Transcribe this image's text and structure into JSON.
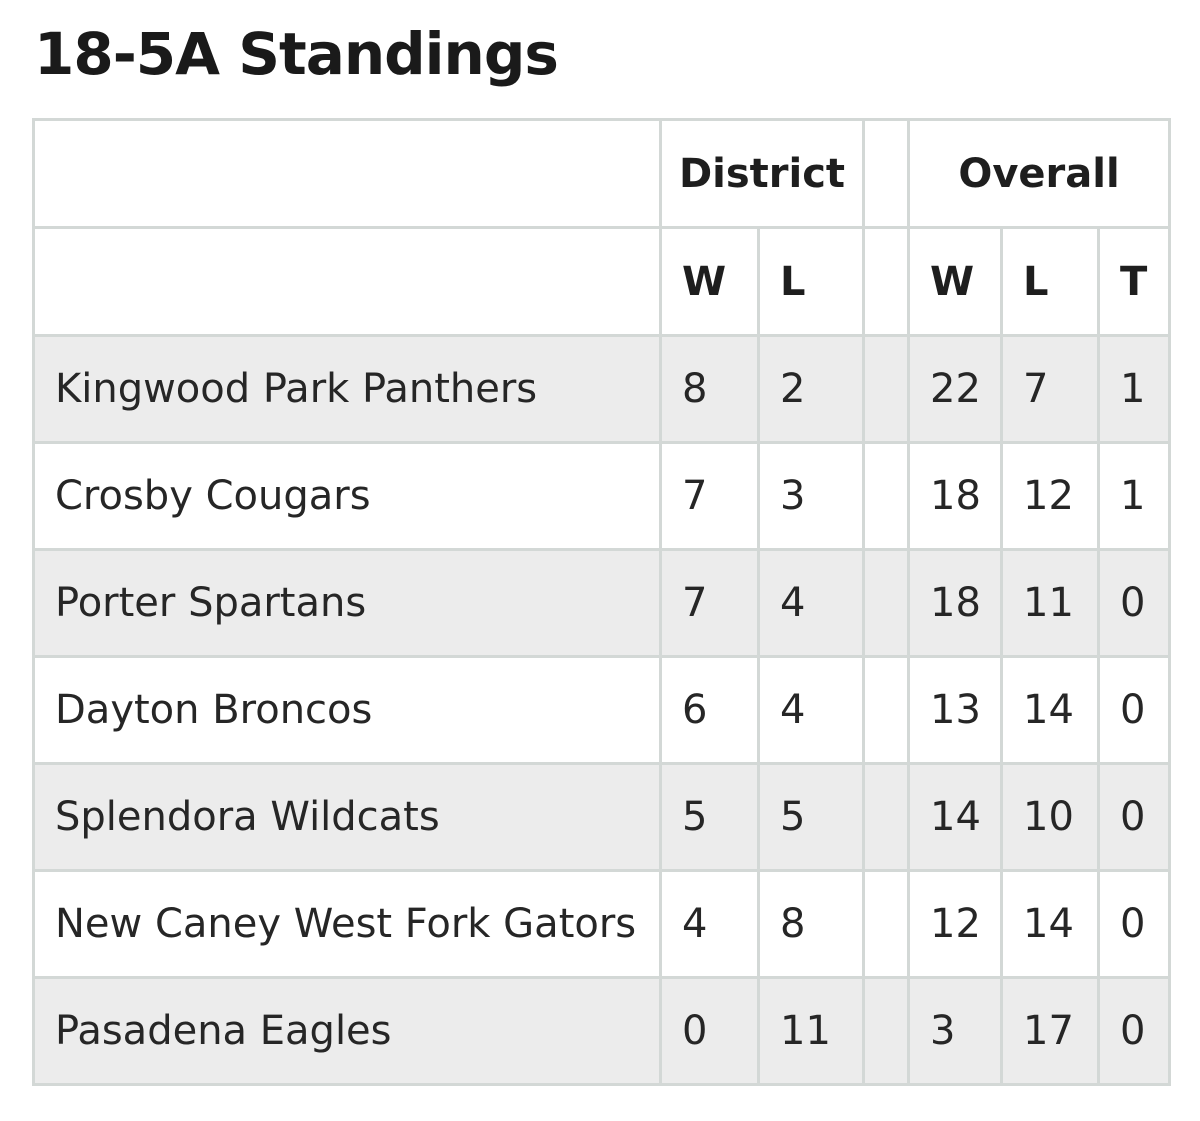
{
  "title": "18-5A Standings",
  "table": {
    "group_headers": {
      "district": "District",
      "overall": "Overall"
    },
    "sub_headers": {
      "district_w": "W",
      "district_l": "L",
      "overall_w": "W",
      "overall_l": "L",
      "overall_t": "T"
    },
    "rows": [
      {
        "team": "Kingwood Park Panthers",
        "dw": "8",
        "dl": "2",
        "ow": "22",
        "ol": "7",
        "ot": "1"
      },
      {
        "team": "Crosby Cougars",
        "dw": "7",
        "dl": "3",
        "ow": "18",
        "ol": "12",
        "ot": "1"
      },
      {
        "team": "Porter Spartans",
        "dw": "7",
        "dl": "4",
        "ow": "18",
        "ol": "11",
        "ot": "0"
      },
      {
        "team": "Dayton Broncos",
        "dw": "6",
        "dl": "4",
        "ow": "13",
        "ol": "14",
        "ot": "0"
      },
      {
        "team": "Splendora Wildcats",
        "dw": "5",
        "dl": "5",
        "ow": "14",
        "ol": "10",
        "ot": "0"
      },
      {
        "team": "New Caney West Fork Gators",
        "dw": "4",
        "dl": "8",
        "ow": "12",
        "ol": "14",
        "ot": "0"
      },
      {
        "team": "Pasadena Eagles",
        "dw": "0",
        "dl": "11",
        "ow": "3",
        "ol": "17",
        "ot": "0"
      }
    ]
  }
}
